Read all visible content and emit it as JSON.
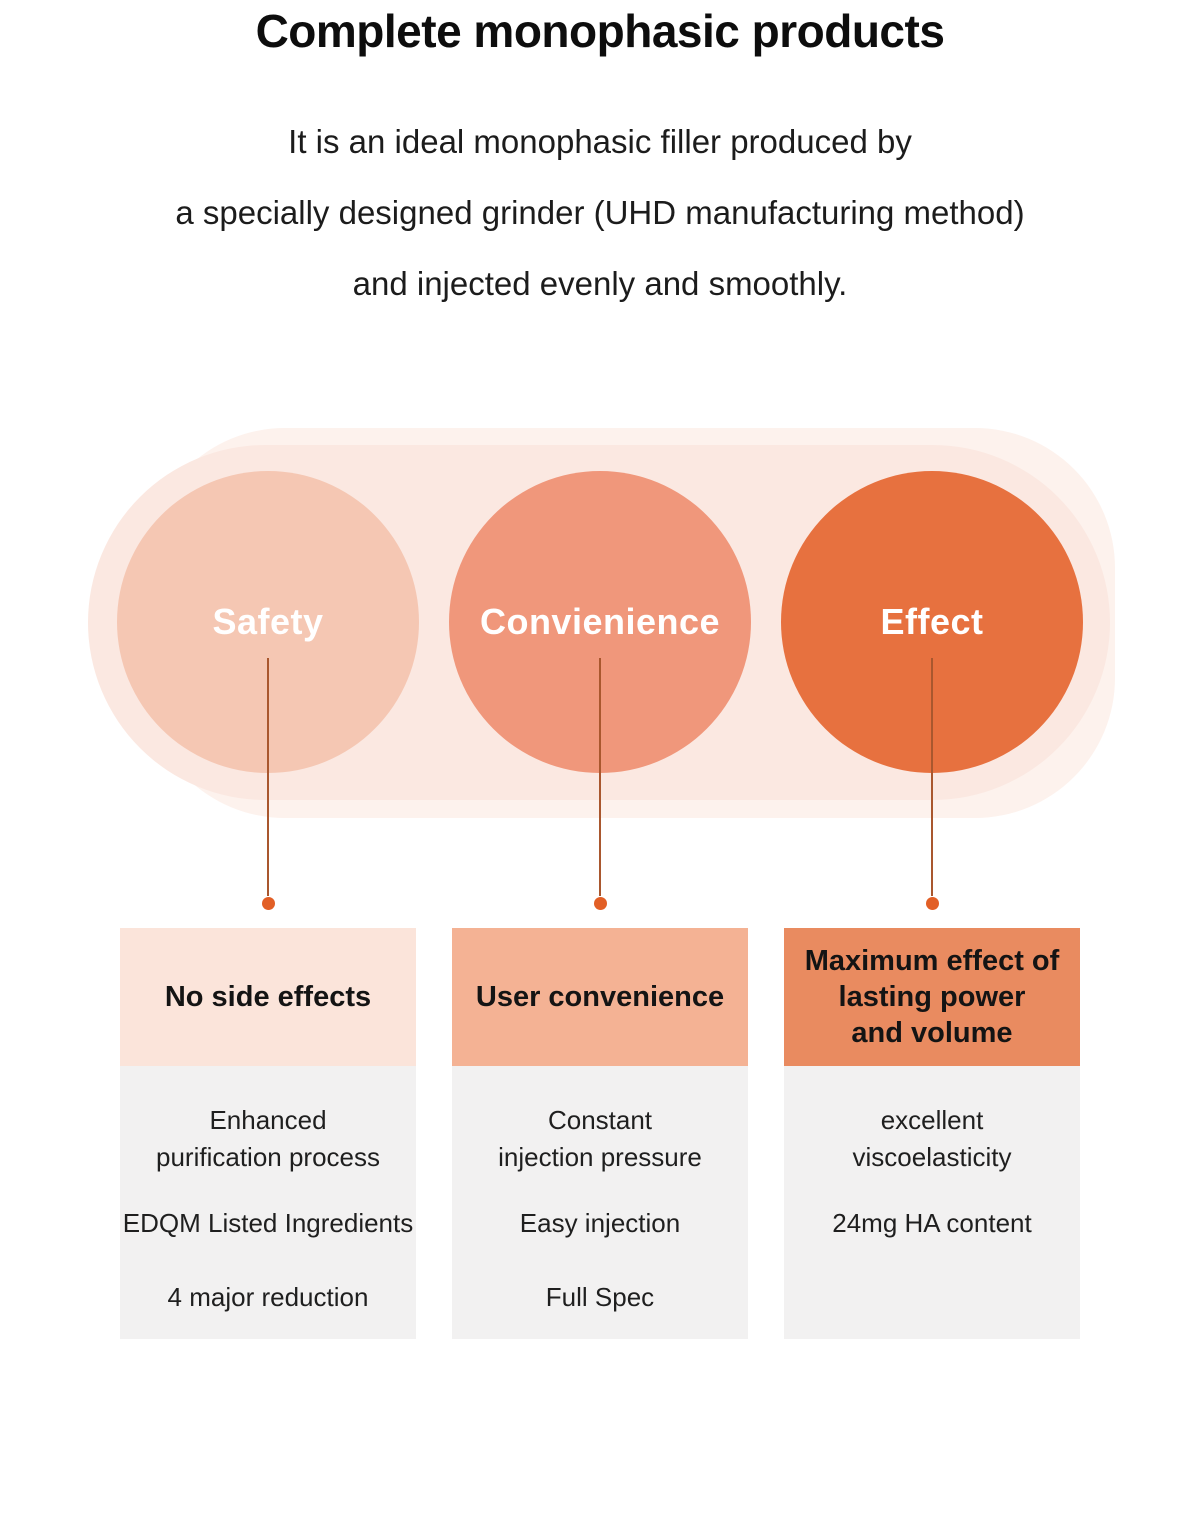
{
  "title": "Complete monophasic products",
  "intro": "It is an ideal monophasic filler produced by\na specially designed grinder (UHD manufacturing method)\nand injected evenly and smoothly.",
  "colors": {
    "page_background": "#FFFFFF",
    "halo_background": "#FDF2ED",
    "pill_background": "#FBE8E1",
    "connector_line": "#A9572E",
    "connector_dot": "#E25F26",
    "card_body_background": "#F2F1F1",
    "circle_label_text": "#FFFFFF",
    "heading_text": "#0D0D0D"
  },
  "pillars": [
    {
      "circle_label": "Safety",
      "circle_color": "#F5C7B3",
      "card_header": "No side effects",
      "card_header_bg": "#FBE4DA",
      "items": [
        "Enhanced\npurification process",
        "EDQM Listed Ingredients",
        "4 major reduction"
      ]
    },
    {
      "circle_label": "Convienience",
      "circle_color": "#F0977B",
      "card_header": "User convenience",
      "card_header_bg": "#F4B294",
      "items": [
        "Constant\ninjection pressure",
        "Easy injection",
        "Full Spec"
      ]
    },
    {
      "circle_label": "Effect",
      "circle_color": "#E7713F",
      "card_header": "Maximum effect of\nlasting power\nand volume",
      "card_header_bg": "#E98B60",
      "items": [
        "excellent\nviscoelasticity",
        "24mg HA content",
        ""
      ]
    }
  ]
}
